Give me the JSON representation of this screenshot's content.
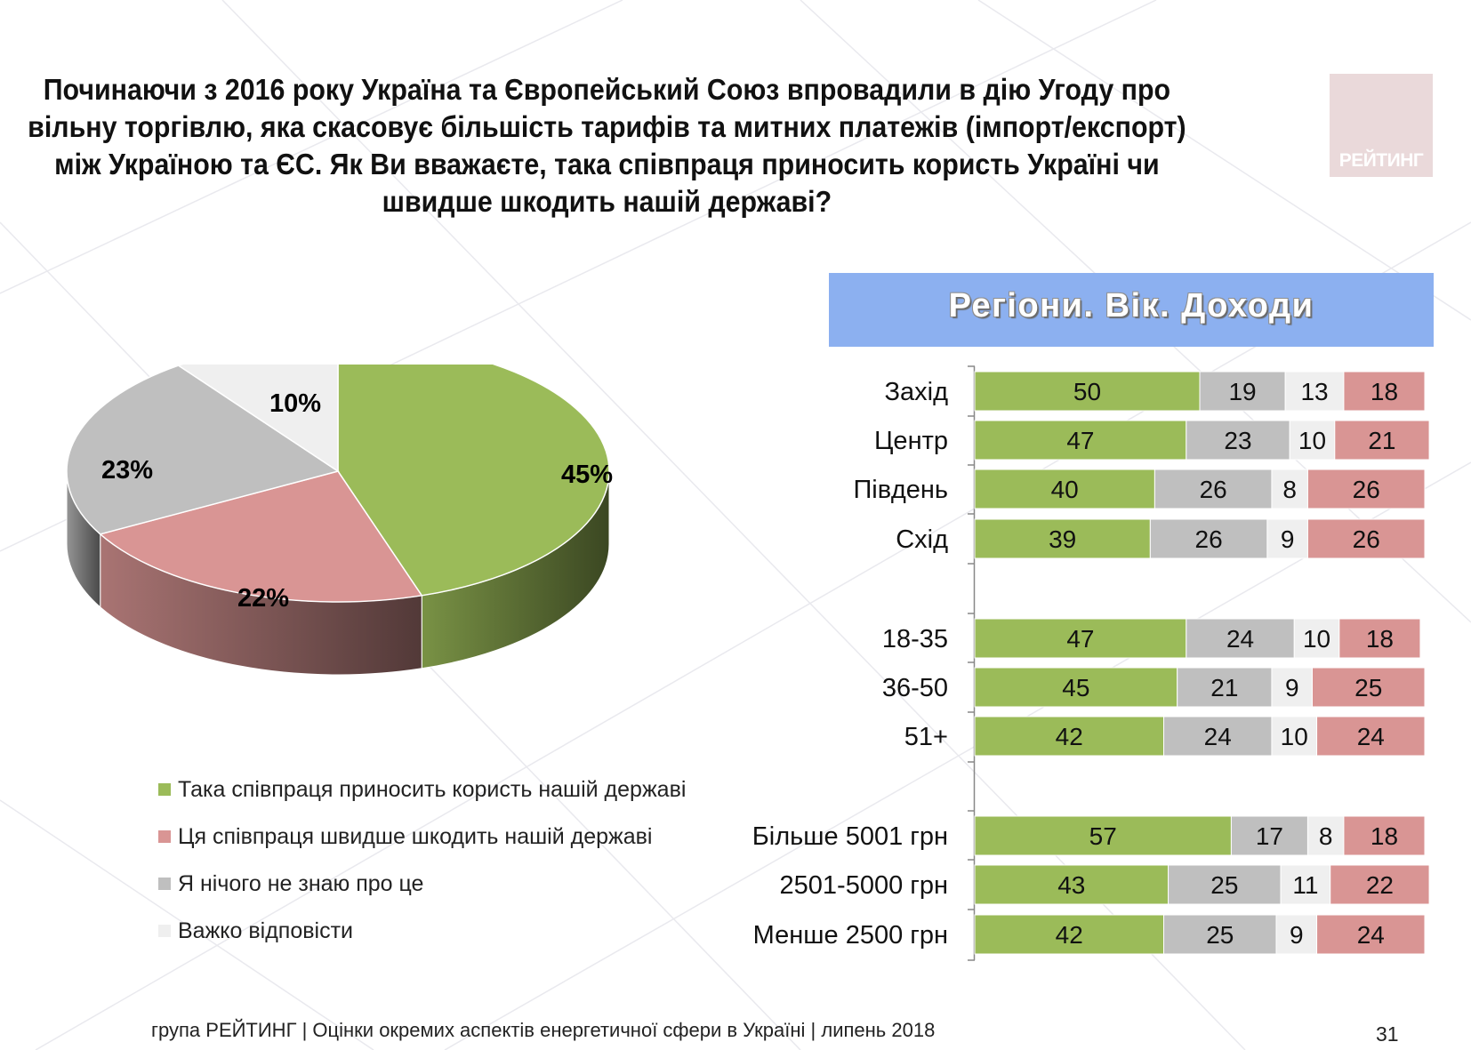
{
  "question": "Починаючи з 2016 року Україна та Європейський Союз впровадили в дію Угоду про вільну торгівлю, яка скасовує більшість тарифів та митних платежів (імпорт/експорт) між Україною та ЄС. Як Ви вважаєте, така співпраця приносить користь Україні чи швидше шкодить нашій державі?",
  "logo_text": "РЕЙТИНГ",
  "panel_header": "Регіони. Вік. Доходи",
  "colors": {
    "benefit": "#9bbb59",
    "harm": "#d99594",
    "dont_know": "#bfbfbf",
    "hard_to_say": "#efefef",
    "header_bg": "#8cb0f0"
  },
  "legend": [
    {
      "label": "Така співпраця приносить користь нашій державі",
      "color": "#9bbb59"
    },
    {
      "label": "Ця співпраця швидше шкодить нашій державі",
      "color": "#d99594"
    },
    {
      "label": "Я нічого не знаю про це",
      "color": "#bfbfbf"
    },
    {
      "label": "Важко відповісти",
      "color": "#efefef"
    }
  ],
  "chart_data": [
    {
      "type": "pie",
      "slices": [
        {
          "label": "Така співпраця приносить користь нашій державі",
          "value": 45,
          "display": "45%"
        },
        {
          "label": "Ця співпраця швидше шкодить нашій державі",
          "value": 22,
          "display": "22%"
        },
        {
          "label": "Я нічого не знаю про це",
          "value": 23,
          "display": "23%"
        },
        {
          "label": "Важко відповісти",
          "value": 10,
          "display": "10%"
        }
      ]
    },
    {
      "type": "bar",
      "orientation": "horizontal",
      "stacked": true,
      "xlim": [
        0,
        100
      ],
      "categories": [
        "Захід",
        "Центр",
        "Південь",
        "Схід",
        "18-35",
        "36-50",
        "51+",
        "Більше 5001 грн",
        "2501-5000 грн",
        "Менше 2500 грн"
      ],
      "groups": [
        [
          "Захід",
          "Центр",
          "Південь",
          "Схід"
        ],
        [
          "18-35",
          "36-50",
          "51+"
        ],
        [
          "Більше 5001 грн",
          "2501-5000 грн",
          "Менше 2500 грн"
        ]
      ],
      "series": [
        {
          "name": "Така співпраця приносить користь нашій державі",
          "values": [
            50,
            47,
            40,
            39,
            47,
            45,
            42,
            57,
            43,
            42
          ]
        },
        {
          "name": "Я нічого не знаю про це",
          "values": [
            19,
            23,
            26,
            26,
            24,
            21,
            24,
            17,
            25,
            25
          ]
        },
        {
          "name": "Важко відповісти",
          "values": [
            13,
            10,
            8,
            9,
            10,
            9,
            10,
            8,
            11,
            9
          ]
        },
        {
          "name": "Ця співпраця швидше шкодить нашій державі",
          "values": [
            18,
            21,
            26,
            26,
            18,
            25,
            24,
            18,
            22,
            24
          ]
        }
      ]
    }
  ],
  "footer": "група РЕЙТИНГ  |  Оцінки окремих аспектів енергетичної сфери в Україні  |  липень 2018",
  "page_number": "31"
}
